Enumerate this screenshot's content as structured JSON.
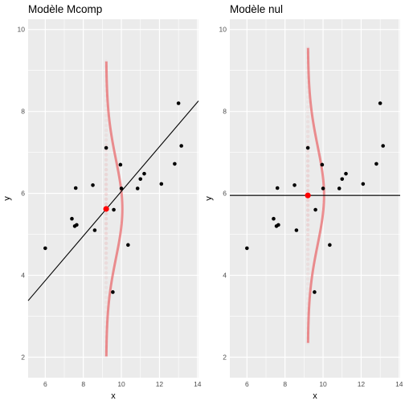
{
  "chart_data": [
    {
      "type": "scatter",
      "title": "Modèle Mcomp",
      "xlabel": "x",
      "ylabel": "y",
      "xlim": [
        5.1,
        14.05
      ],
      "ylim": [
        1.5,
        10.25
      ],
      "x_ticks": [
        6,
        8,
        10,
        12,
        14
      ],
      "y_ticks": [
        2,
        4,
        6,
        8,
        10
      ],
      "grid": true,
      "points": [
        {
          "x": 6.0,
          "y": 4.66
        },
        {
          "x": 7.4,
          "y": 5.38
        },
        {
          "x": 7.55,
          "y": 5.2
        },
        {
          "x": 7.6,
          "y": 6.13
        },
        {
          "x": 7.65,
          "y": 5.23
        },
        {
          "x": 8.5,
          "y": 6.2
        },
        {
          "x": 8.6,
          "y": 5.1
        },
        {
          "x": 9.2,
          "y": 7.11
        },
        {
          "x": 9.55,
          "y": 3.59
        },
        {
          "x": 9.6,
          "y": 5.6
        },
        {
          "x": 9.95,
          "y": 6.7
        },
        {
          "x": 10.0,
          "y": 6.12
        },
        {
          "x": 10.35,
          "y": 4.74
        },
        {
          "x": 10.85,
          "y": 6.12
        },
        {
          "x": 11.0,
          "y": 6.35
        },
        {
          "x": 11.2,
          "y": 6.48
        },
        {
          "x": 12.1,
          "y": 6.23
        },
        {
          "x": 12.8,
          "y": 6.72
        },
        {
          "x": 13.0,
          "y": 8.2
        },
        {
          "x": 13.15,
          "y": 7.16
        }
      ],
      "fitted_line": {
        "intercept": 0.6,
        "slope": 0.545
      },
      "highlight_point": {
        "x": 9.2,
        "y": 5.62
      },
      "error_distribution": {
        "center_x": 9.2,
        "mean": 5.62,
        "sd": 1.2,
        "color": "#e8585a"
      }
    },
    {
      "type": "scatter",
      "title": "Modèle nul",
      "xlabel": "x",
      "ylabel": "y",
      "xlim": [
        5.1,
        14.05
      ],
      "ylim": [
        1.5,
        10.25
      ],
      "x_ticks": [
        6,
        8,
        10,
        12,
        14
      ],
      "y_ticks": [
        2,
        4,
        6,
        8,
        10
      ],
      "grid": true,
      "points": [
        {
          "x": 6.0,
          "y": 4.66
        },
        {
          "x": 7.4,
          "y": 5.38
        },
        {
          "x": 7.55,
          "y": 5.2
        },
        {
          "x": 7.6,
          "y": 6.13
        },
        {
          "x": 7.65,
          "y": 5.23
        },
        {
          "x": 8.5,
          "y": 6.2
        },
        {
          "x": 8.6,
          "y": 5.1
        },
        {
          "x": 9.2,
          "y": 7.11
        },
        {
          "x": 9.55,
          "y": 3.59
        },
        {
          "x": 9.6,
          "y": 5.6
        },
        {
          "x": 9.95,
          "y": 6.7
        },
        {
          "x": 10.0,
          "y": 6.12
        },
        {
          "x": 10.35,
          "y": 4.74
        },
        {
          "x": 10.85,
          "y": 6.12
        },
        {
          "x": 11.0,
          "y": 6.35
        },
        {
          "x": 11.2,
          "y": 6.48
        },
        {
          "x": 12.1,
          "y": 6.23
        },
        {
          "x": 12.8,
          "y": 6.72
        },
        {
          "x": 13.0,
          "y": 8.2
        },
        {
          "x": 13.15,
          "y": 7.16
        }
      ],
      "fitted_line": {
        "intercept": 5.95,
        "slope": 0
      },
      "highlight_point": {
        "x": 9.2,
        "y": 5.95
      },
      "error_distribution": {
        "center_x": 9.2,
        "mean": 5.95,
        "sd": 1.2,
        "color": "#e8585a"
      }
    }
  ],
  "colors": {
    "panel_background": "#ebebeb",
    "gridline": "#ffffff",
    "point": "#000000",
    "highlight": "#ff0000",
    "density": "#e8585a",
    "line": "#000000"
  }
}
